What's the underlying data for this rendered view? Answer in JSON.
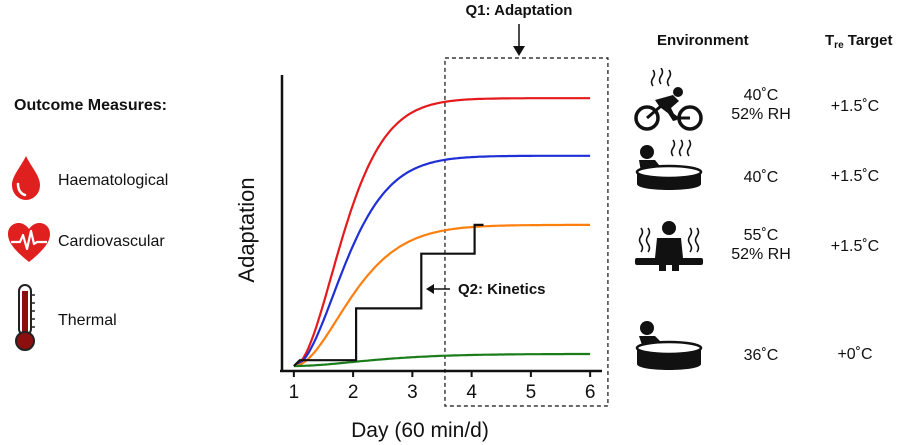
{
  "outcomes": {
    "title": "Outcome Measures:",
    "items": [
      {
        "label": "Haematological",
        "icon": "blood-drop-icon"
      },
      {
        "label": "Cardiovascular",
        "icon": "heart-ecg-icon"
      },
      {
        "label": "Thermal",
        "icon": "thermometer-icon"
      }
    ]
  },
  "annotations": {
    "q1": "Q1: Adaptation",
    "q2": "Q2: Kinetics"
  },
  "chart_data": {
    "type": "line",
    "xlabel": "Day (60 min/d)",
    "ylabel": "Adaptation",
    "x_ticks": [
      1,
      2,
      3,
      4,
      5,
      6
    ],
    "xlim": [
      0.8,
      6.2
    ],
    "ylim": [
      0,
      1
    ],
    "grid": false,
    "highlight_region": {
      "x_start": 3.55,
      "x_end": 6.3,
      "label": "Q1: Adaptation"
    },
    "series": [
      {
        "name": "red",
        "color": "#e41a1c",
        "plateau": 0.93,
        "k": 1.25
      },
      {
        "name": "blue",
        "color": "#1f2fd6",
        "plateau": 0.73,
        "k": 1.15
      },
      {
        "name": "orange",
        "color": "#ff7f0e",
        "plateau": 0.49,
        "k": 0.95
      },
      {
        "name": "green",
        "color": "#1a7d1a",
        "plateau": 0.042,
        "k": 0.55
      }
    ],
    "kinetics_steps": {
      "label": "Q2: Kinetics",
      "color": "#111111",
      "points": [
        [
          1.0,
          0.0
        ],
        [
          1.1,
          0.02
        ],
        [
          2.05,
          0.02
        ],
        [
          2.05,
          0.2
        ],
        [
          3.15,
          0.2
        ],
        [
          3.15,
          0.39
        ],
        [
          4.05,
          0.39
        ],
        [
          4.05,
          0.49
        ],
        [
          4.2,
          0.49
        ]
      ]
    }
  },
  "environment": {
    "header": "Environment",
    "tre_header_main": "T",
    "tre_header_sub": "re",
    "tre_header_rest": " Target",
    "rows": [
      {
        "icon": "cycling-heat-icon",
        "line1": "40˚C",
        "line2": "52% RH",
        "tre": "+1.5˚C"
      },
      {
        "icon": "hot-water-immersion-icon",
        "line1": "40˚C",
        "line2": "",
        "tre": "+1.5˚C"
      },
      {
        "icon": "sauna-icon",
        "line1": "55˚C",
        "line2": "52% RH",
        "tre": "+1.5˚C"
      },
      {
        "icon": "thermoneutral-immersion-icon",
        "line1": "36˚C",
        "line2": "",
        "tre": "+0˚C"
      }
    ]
  }
}
